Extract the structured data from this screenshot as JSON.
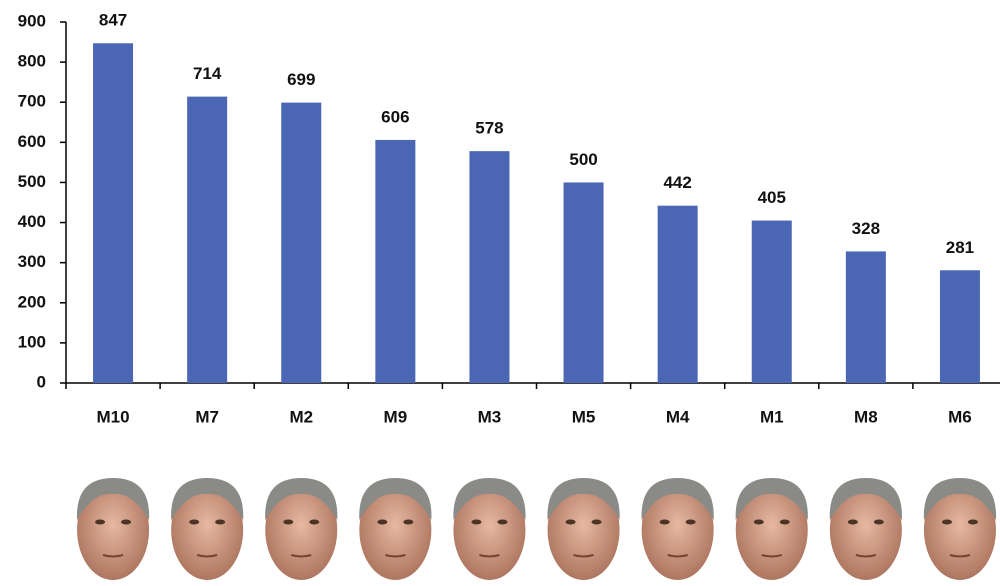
{
  "chart_data": {
    "type": "bar",
    "categories": [
      "M10",
      "M7",
      "M2",
      "M9",
      "M3",
      "M5",
      "M4",
      "M1",
      "M8",
      "M6"
    ],
    "values": [
      847,
      714,
      699,
      606,
      578,
      500,
      442,
      405,
      328,
      281
    ],
    "color": "#4a66b5",
    "ylim": [
      0,
      900
    ],
    "yticks": [
      0,
      100,
      200,
      300,
      400,
      500,
      600,
      700,
      800,
      900
    ]
  }
}
